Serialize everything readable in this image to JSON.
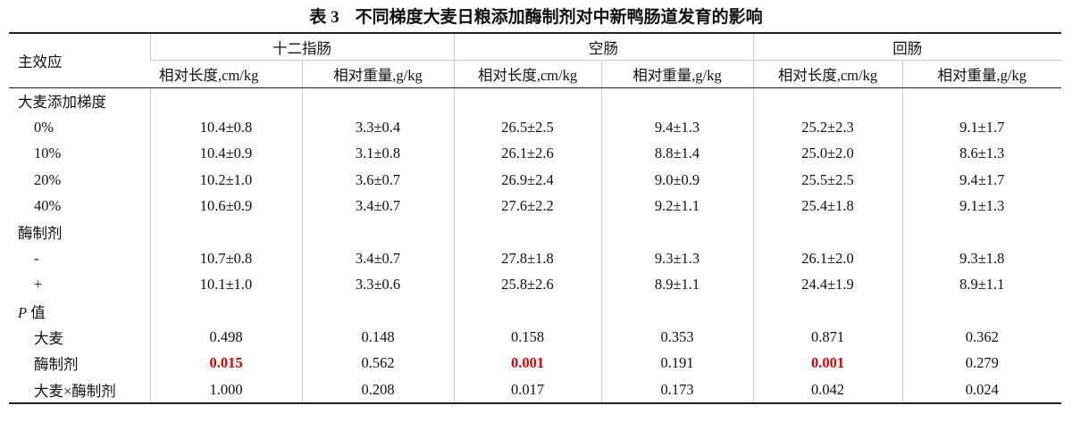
{
  "title": {
    "number": "表 3",
    "text": "不同梯度大麦日粮添加酶制剂对中新鸭肠道发育的影响"
  },
  "header": {
    "corner": "主效应",
    "groups": [
      "十二指肠",
      "空肠",
      "回肠"
    ],
    "subheaders": [
      "相对长度,cm/kg",
      "相对重量,g/kg",
      "相对长度,cm/kg",
      "相对重量,g/kg",
      "相对长度,cm/kg",
      "相对重量,g/kg"
    ]
  },
  "sections": [
    {
      "label": "大麦添加梯度",
      "rows": [
        {
          "label": "0%",
          "cells": [
            "10.4±0.8",
            "3.3±0.4",
            "26.5±2.5",
            "9.4±1.3",
            "25.2±2.3",
            "9.1±1.7"
          ]
        },
        {
          "label": "10%",
          "cells": [
            "10.4±0.9",
            "3.1±0.8",
            "26.1±2.6",
            "8.8±1.4",
            "25.0±2.0",
            "8.6±1.3"
          ]
        },
        {
          "label": "20%",
          "cells": [
            "10.2±1.0",
            "3.6±0.7",
            "26.9±2.4",
            "9.0±0.9",
            "25.5±2.5",
            "9.4±1.7"
          ]
        },
        {
          "label": "40%",
          "cells": [
            "10.6±0.9",
            "3.4±0.7",
            "27.6±2.2",
            "9.2±1.1",
            "25.4±1.8",
            "9.1±1.3"
          ]
        }
      ]
    },
    {
      "label": "酶制剂",
      "rows": [
        {
          "label": "-",
          "cells": [
            "10.7±0.8",
            "3.4±0.7",
            "27.8±1.8",
            "9.3±1.3",
            "26.1±2.0",
            "9.3±1.8"
          ]
        },
        {
          "label": "+",
          "cells": [
            "10.1±1.0",
            "3.3±0.6",
            "25.8±2.6",
            "8.9±1.1",
            "24.4±1.9",
            "8.9±1.1"
          ]
        }
      ]
    },
    {
      "label_italic": "P",
      "label": "值",
      "rows": [
        {
          "label": "大麦",
          "cells": [
            "0.498",
            "0.148",
            "0.158",
            "0.353",
            "0.871",
            "0.362"
          ]
        },
        {
          "label": "酶制剂",
          "cells": [
            "0.015",
            "0.562",
            "0.001",
            "0.191",
            "0.001",
            "0.279"
          ],
          "significant": [
            0,
            2,
            4
          ]
        },
        {
          "label": "大麦×酶制剂",
          "cells": [
            "1.000",
            "0.208",
            "0.017",
            "0.173",
            "0.042",
            "0.024"
          ]
        }
      ]
    }
  ]
}
